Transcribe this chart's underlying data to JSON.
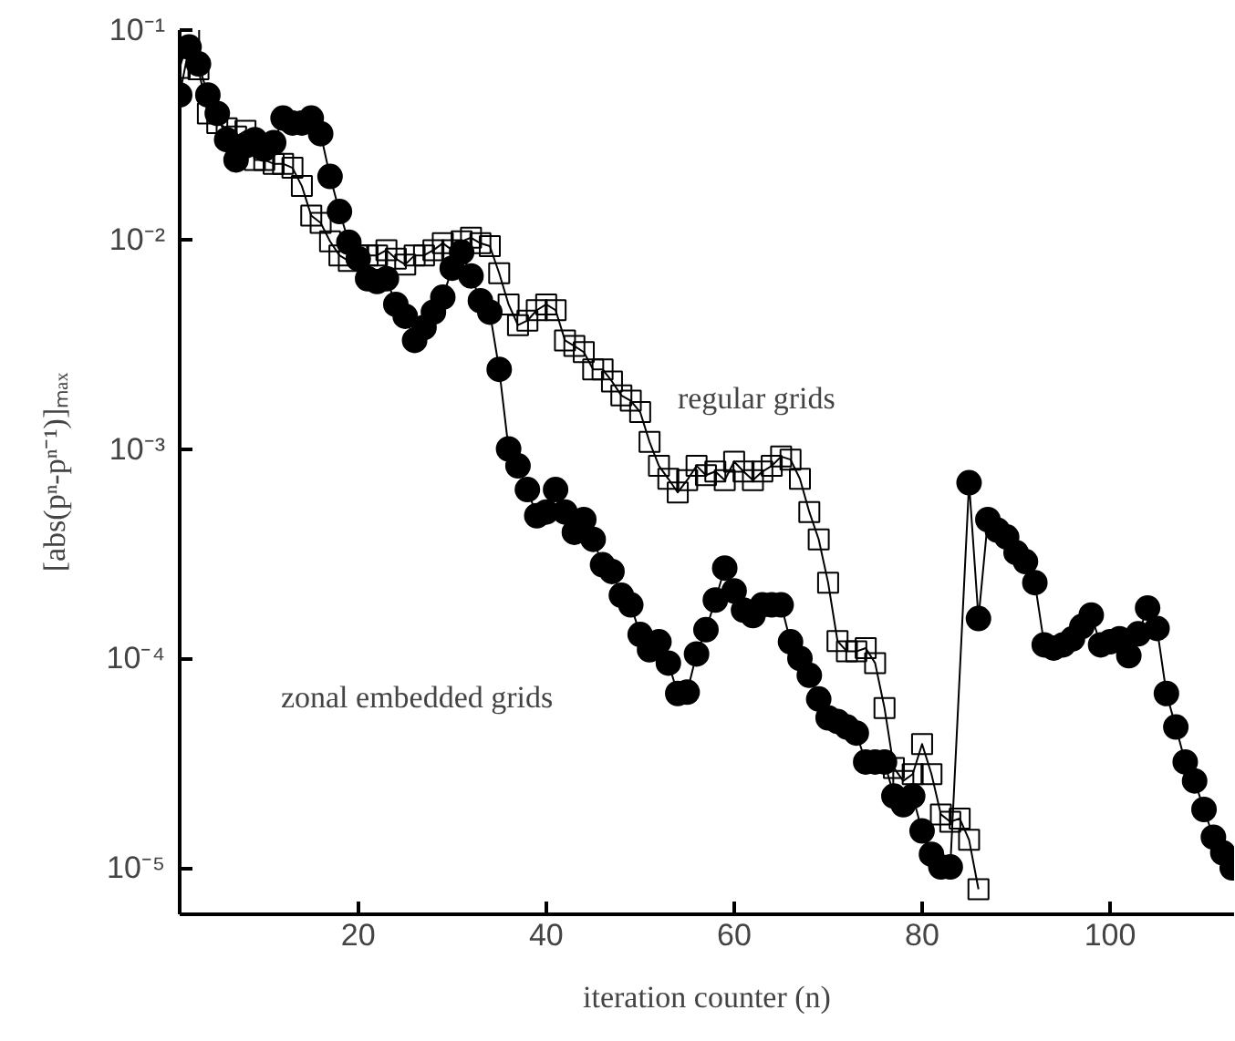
{
  "chart_data": {
    "type": "line",
    "xlabel": "iteration counter (n)",
    "ylabel": "[abs(pⁿ-pⁿ⁻¹)]ₘₐₓ",
    "log": "y",
    "xlim": [
      1,
      113.2
    ],
    "ylim": [
      6e-06,
      0.1
    ],
    "xticks": [
      20,
      40,
      60,
      80,
      100
    ],
    "yticks": [
      {
        "value": 0.1,
        "label": "10⁻¹"
      },
      {
        "value": 0.01,
        "label": "10⁻²"
      },
      {
        "value": 0.001,
        "label": "10⁻³"
      },
      {
        "value": 0.0001,
        "label": "10⁻⁴"
      },
      {
        "value": 1e-05,
        "label": "10⁻⁵"
      }
    ],
    "series": [
      {
        "color": "#000000",
        "marker": "square",
        "x": [
          1,
          2,
          3,
          4,
          5,
          6,
          7,
          8,
          9,
          10,
          11,
          12,
          13,
          14,
          15,
          16,
          17,
          18,
          19,
          20,
          21,
          22,
          23,
          24,
          25,
          26,
          27,
          28,
          29,
          30,
          31,
          32,
          33,
          34,
          35,
          36,
          37,
          38,
          39,
          40,
          41,
          42,
          43,
          44,
          45,
          46,
          47,
          48,
          49,
          50,
          51,
          52,
          53,
          54,
          55,
          56,
          57,
          58,
          59,
          60,
          61,
          62,
          63,
          64,
          65,
          66,
          67,
          68,
          69,
          70,
          71,
          72,
          73,
          74,
          75,
          76,
          77,
          78,
          79,
          80,
          81,
          82,
          83,
          84,
          85,
          86
        ],
        "values": [
          0.066,
          0.093,
          0.065,
          0.04,
          0.036,
          0.034,
          0.031,
          0.033,
          0.024,
          0.024,
          0.023,
          0.023,
          0.022,
          0.018,
          0.013,
          0.012,
          0.0098,
          0.0084,
          0.0079,
          0.0084,
          0.0084,
          0.0084,
          0.0089,
          0.0081,
          0.0076,
          0.0084,
          0.0084,
          0.0089,
          0.0096,
          0.0089,
          0.0098,
          0.0102,
          0.0096,
          0.0093,
          0.0069,
          0.0049,
          0.0039,
          0.0041,
          0.0046,
          0.0049,
          0.0046,
          0.0033,
          0.0031,
          0.0029,
          0.0024,
          0.0024,
          0.0021,
          0.0018,
          0.0017,
          0.0015,
          0.00108,
          0.00083,
          0.00072,
          0.00062,
          0.00071,
          0.00083,
          0.00075,
          0.00078,
          0.00071,
          0.00087,
          0.00078,
          0.00071,
          0.00078,
          0.00083,
          0.00092,
          0.00089,
          0.00072,
          0.0005,
          0.00037,
          0.00023,
          0.000121,
          0.000108,
          0.000108,
          0.000112,
          9.5e-05,
          5.8e-05,
          3e-05,
          2.6e-05,
          2.8e-05,
          3.9e-05,
          2.8e-05,
          1.8e-05,
          1.66e-05,
          1.72e-05,
          1.36e-05,
          7.9e-06
        ]
      },
      {
        "color": "#000000",
        "marker": "circle",
        "x": [
          1,
          2,
          3,
          4,
          5,
          6,
          7,
          8,
          9,
          10,
          11,
          12,
          13,
          14,
          15,
          16,
          17,
          18,
          19,
          20,
          21,
          22,
          23,
          24,
          25,
          26,
          27,
          28,
          29,
          30,
          31,
          32,
          33,
          34,
          35,
          36,
          37,
          38,
          39,
          40,
          41,
          42,
          43,
          44,
          45,
          46,
          47,
          48,
          49,
          50,
          51,
          52,
          53,
          54,
          55,
          56,
          57,
          58,
          59,
          60,
          61,
          62,
          63,
          64,
          65,
          66,
          67,
          68,
          69,
          70,
          71,
          72,
          73,
          74,
          75,
          76,
          77,
          78,
          79,
          80,
          81,
          82,
          83,
          85,
          86,
          87,
          88,
          89,
          90,
          91,
          92,
          93,
          94,
          95,
          96,
          97,
          98,
          99,
          100,
          101,
          102,
          103,
          104,
          105,
          106,
          107,
          108,
          109,
          110,
          111,
          112,
          113
        ],
        "values": [
          0.049,
          0.083,
          0.069,
          0.049,
          0.04,
          0.03,
          0.024,
          0.028,
          0.03,
          0.027,
          0.029,
          0.038,
          0.036,
          0.036,
          0.038,
          0.032,
          0.02,
          0.0136,
          0.0097,
          0.0081,
          0.0065,
          0.0063,
          0.0065,
          0.0049,
          0.0043,
          0.0033,
          0.0038,
          0.0045,
          0.0053,
          0.0073,
          0.0087,
          0.0067,
          0.0051,
          0.0045,
          0.0024,
          0.001,
          0.00083,
          0.00064,
          0.00048,
          0.0005,
          0.00064,
          0.0005,
          0.0004,
          0.00046,
          0.00037,
          0.00028,
          0.00026,
          0.0002,
          0.00018,
          0.00013,
          0.00011,
          0.00012,
          9.5e-05,
          6.8e-05,
          6.9e-05,
          0.000105,
          0.000137,
          0.00019,
          0.00027,
          0.00021,
          0.00017,
          0.00016,
          0.00018,
          0.00018,
          0.00018,
          0.00012,
          0.0001,
          8.3e-05,
          6.4e-05,
          5.2e-05,
          5e-05,
          4.7e-05,
          4.4e-05,
          3.2e-05,
          3.2e-05,
          3.2e-05,
          2.2e-05,
          2e-05,
          2.2e-05,
          1.5e-05,
          1.16e-05,
          1.01e-05,
          1.01e-05,
          0.00069,
          0.000155,
          0.00046,
          0.00041,
          0.00038,
          0.00032,
          0.00029,
          0.00023,
          0.000116,
          0.000112,
          0.000116,
          0.000124,
          0.000142,
          0.000161,
          0.000116,
          0.00012,
          0.000124,
          0.000103,
          0.000131,
          0.000174,
          0.000139,
          6.8e-05,
          4.7e-05,
          3.2e-05,
          2.6e-05,
          1.9e-05,
          1.4e-05,
          1.18e-05,
          1e-05
        ]
      }
    ],
    "annotations": [
      "regular grids",
      "zonal embedded grids"
    ]
  }
}
